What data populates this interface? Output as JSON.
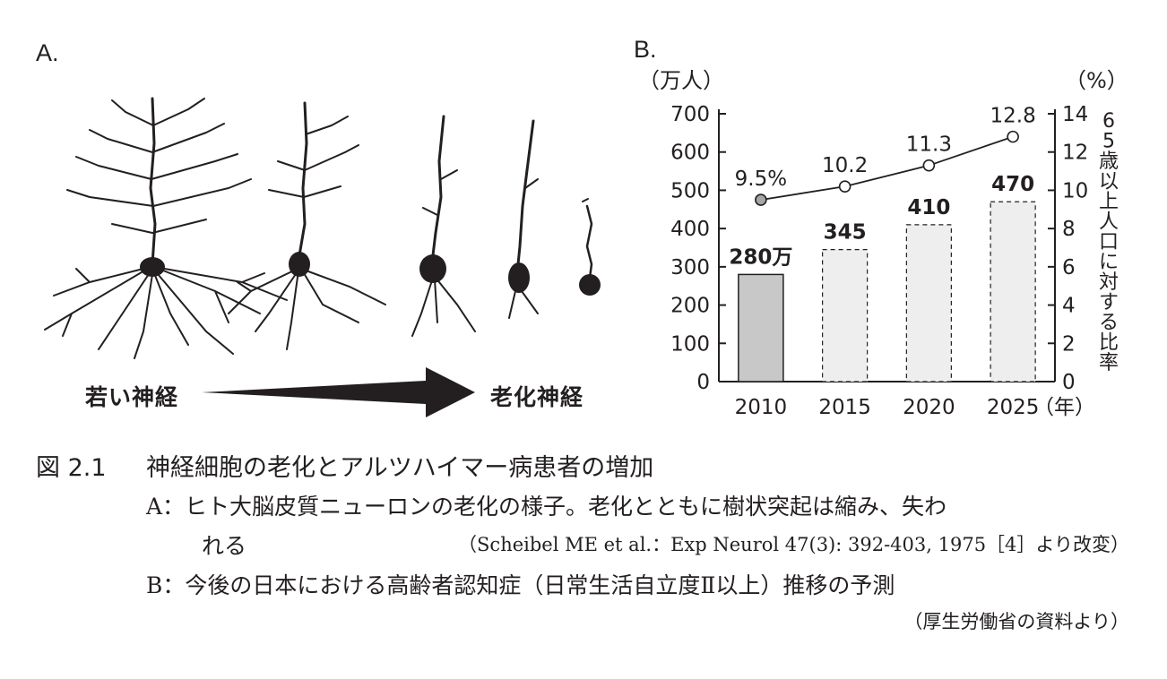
{
  "panel_a": {
    "label": "A.",
    "young_label": "若い神経",
    "aged_label": "老化神経"
  },
  "panel_b": {
    "label": "B."
  },
  "chart_data": {
    "type": "bar",
    "categories": [
      "2010",
      "2015",
      "2020",
      "2025"
    ],
    "series": [
      {
        "values": [
          280,
          345,
          410,
          470
        ],
        "axis": "left",
        "chart": "bar"
      },
      {
        "values": [
          9.5,
          10.2,
          11.3,
          12.8
        ],
        "axis": "right",
        "chart": "line"
      }
    ],
    "bar_data_labels": [
      "280万",
      "345",
      "410",
      "470"
    ],
    "line_data_labels": [
      "9.5%",
      "10.2",
      "11.3",
      "12.8"
    ],
    "left_axis": {
      "unit": "（万人）",
      "ylim": [
        0,
        700
      ],
      "ticks": [
        "0",
        "100",
        "200",
        "300",
        "400",
        "500",
        "600",
        "700"
      ]
    },
    "right_axis": {
      "unit": "（%）",
      "label": "65歳以上人口に対する比率",
      "ylim": [
        0,
        14
      ],
      "ticks": [
        "0",
        "2",
        "4",
        "6",
        "8",
        "10",
        "12",
        "14"
      ]
    },
    "x_unit": "（年）",
    "grid": false,
    "colors": {
      "bar_observed": "#c8c8c8",
      "bar_projected": "#eeeeee",
      "line": "#231f20",
      "marker_first": "#a6a6a6"
    }
  },
  "caption": {
    "figure_number": "図 2.1",
    "title": "神経細胞の老化とアルツハイマー病患者の増加",
    "a_line1": "A：ヒト大脳皮質ニューロンの老化の様子。老化とともに樹状突起は縮み、失わ",
    "a_line2": "れる",
    "a_source": "（Scheibel ME et al.：Exp Neurol 47(3): 392-403, 1975［4］より改変）",
    "b_line1": "B：今後の日本における高齢者認知症（日常生活自立度Ⅱ以上）推移の予測",
    "b_source": "（厚生労働省の資料より）"
  }
}
